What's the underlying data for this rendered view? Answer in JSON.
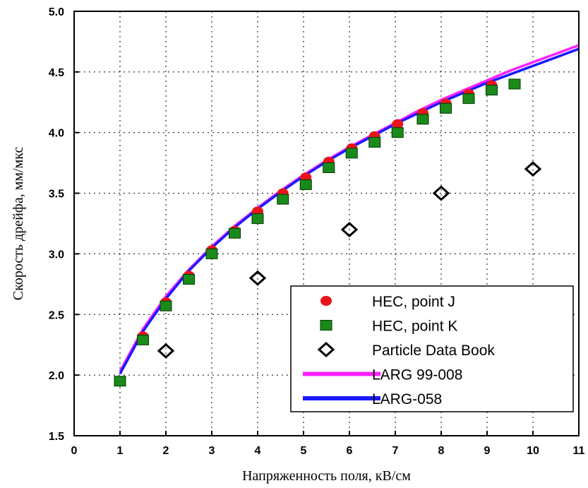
{
  "chart_data": {
    "type": "scatter",
    "title": "",
    "xlabel": "Напряженность поля, кВ/см",
    "ylabel": "Скорость дрейфа, мм/мкс",
    "xlim": [
      0,
      11
    ],
    "ylim": [
      1.5,
      5.0
    ],
    "x_ticks": [
      "0",
      "1",
      "2",
      "3",
      "4",
      "5",
      "6",
      "7",
      "8",
      "9",
      "10",
      "11"
    ],
    "y_ticks": [
      "1.5",
      "2.0",
      "2.5",
      "3.0",
      "3.5",
      "4.0",
      "4.5",
      "5.0"
    ],
    "grid": true,
    "legend_position": "bottom-right",
    "series": [
      {
        "name": "HEC, point J",
        "marker": "circle",
        "color": "#e8141c",
        "x": [
          1.5,
          2.0,
          2.5,
          3.0,
          3.5,
          4.0,
          4.55,
          5.05,
          5.55,
          6.05,
          6.55,
          7.05,
          7.6,
          8.1,
          8.6,
          9.1
        ],
        "y": [
          2.32,
          2.6,
          2.82,
          3.03,
          3.19,
          3.35,
          3.5,
          3.63,
          3.76,
          3.87,
          3.97,
          4.07,
          4.16,
          4.24,
          4.32,
          4.39
        ]
      },
      {
        "name": "HEC, point K",
        "marker": "square",
        "color": "#1a8a1a",
        "x": [
          1.0,
          1.5,
          2.0,
          2.5,
          3.0,
          3.5,
          4.0,
          4.55,
          5.05,
          5.55,
          6.05,
          6.55,
          7.05,
          7.6,
          8.1,
          8.6,
          9.1,
          9.6
        ],
        "y": [
          1.95,
          2.29,
          2.57,
          2.79,
          3.0,
          3.17,
          3.29,
          3.45,
          3.57,
          3.71,
          3.83,
          3.92,
          4.0,
          4.11,
          4.2,
          4.28,
          4.35,
          4.4
        ]
      },
      {
        "name": "Particle Data Book",
        "marker": "diamond-open",
        "color": "#000000",
        "x": [
          2,
          4,
          6,
          8,
          10
        ],
        "y": [
          2.2,
          2.8,
          3.2,
          3.5,
          3.7
        ]
      },
      {
        "name": "LARG 99-008",
        "marker": "line",
        "color": "#ff20ff",
        "x": [
          1.0,
          1.5,
          2.0,
          2.5,
          3.0,
          3.5,
          4.0,
          4.5,
          5.0,
          5.5,
          6.0,
          6.5,
          7.0,
          7.5,
          8.0,
          8.5,
          9.0,
          9.5,
          10.0,
          10.5,
          11.0
        ],
        "y": [
          2.03,
          2.38,
          2.65,
          2.87,
          3.06,
          3.23,
          3.38,
          3.52,
          3.65,
          3.77,
          3.88,
          3.98,
          4.08,
          4.18,
          4.27,
          4.35,
          4.43,
          4.51,
          4.58,
          4.65,
          4.72
        ]
      },
      {
        "name": "LARG-058",
        "marker": "line",
        "color": "#1a1aff",
        "x": [
          1.0,
          1.5,
          2.0,
          2.5,
          3.0,
          3.5,
          4.0,
          4.5,
          5.0,
          5.5,
          6.0,
          6.5,
          7.0,
          7.5,
          8.0,
          8.5,
          9.0,
          9.5,
          10.0,
          10.5,
          11.0
        ],
        "y": [
          2.01,
          2.36,
          2.63,
          2.86,
          3.05,
          3.22,
          3.37,
          3.51,
          3.64,
          3.76,
          3.87,
          3.97,
          4.07,
          4.16,
          4.25,
          4.33,
          4.41,
          4.48,
          4.55,
          4.62,
          4.69
        ]
      }
    ]
  }
}
